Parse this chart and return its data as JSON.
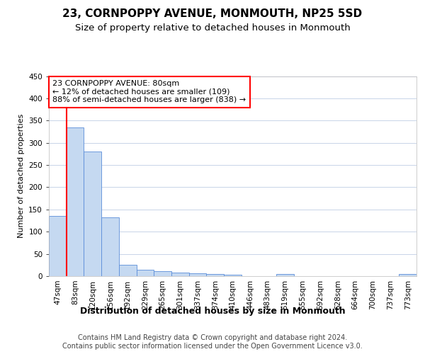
{
  "title": "23, CORNPOPPY AVENUE, MONMOUTH, NP25 5SD",
  "subtitle": "Size of property relative to detached houses in Monmouth",
  "xlabel": "Distribution of detached houses by size in Monmouth",
  "ylabel": "Number of detached properties",
  "categories": [
    "47sqm",
    "83sqm",
    "120sqm",
    "156sqm",
    "192sqm",
    "229sqm",
    "265sqm",
    "301sqm",
    "337sqm",
    "374sqm",
    "410sqm",
    "446sqm",
    "483sqm",
    "519sqm",
    "555sqm",
    "592sqm",
    "628sqm",
    "664sqm",
    "700sqm",
    "737sqm",
    "773sqm"
  ],
  "values": [
    135,
    335,
    280,
    133,
    26,
    15,
    11,
    8,
    6,
    5,
    3,
    0,
    0,
    4,
    0,
    0,
    0,
    0,
    0,
    0,
    4
  ],
  "bar_color": "#c5d9f1",
  "bar_edge_color": "#5b8dd9",
  "vline_color": "#ff0000",
  "vline_x_index": 1,
  "annotation_text": "23 CORNPOPPY AVENUE: 80sqm\n← 12% of detached houses are smaller (109)\n88% of semi-detached houses are larger (838) →",
  "annotation_box_facecolor": "#ffffff",
  "annotation_box_edgecolor": "#ff0000",
  "ylim": [
    0,
    450
  ],
  "yticks": [
    0,
    50,
    100,
    150,
    200,
    250,
    300,
    350,
    400,
    450
  ],
  "footer_text": "Contains HM Land Registry data © Crown copyright and database right 2024.\nContains public sector information licensed under the Open Government Licence v3.0.",
  "background_color": "#ffffff",
  "grid_color": "#c8d4e8",
  "title_fontsize": 11,
  "subtitle_fontsize": 9.5,
  "xlabel_fontsize": 9,
  "ylabel_fontsize": 8,
  "tick_fontsize": 7.5,
  "annotation_fontsize": 8,
  "footer_fontsize": 7
}
